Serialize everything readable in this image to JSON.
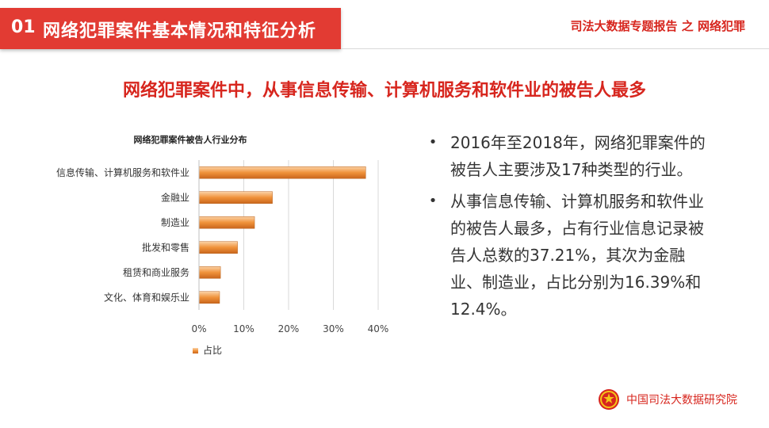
{
  "header": {
    "number": "01",
    "title": "网络犯罪案件基本情况和特征分析"
  },
  "top_right": "司法大数据专题报告 之 网络犯罪",
  "subtitle": "网络犯罪案件中，从事信息传输、计算机服务和软件业的被告人最多",
  "chart_data": {
    "type": "bar",
    "orientation": "horizontal",
    "title": "网络犯罪案件被告人行业分布",
    "categories": [
      "信息传输、计算机服务和软件业",
      "金融业",
      "制造业",
      "批发和零售",
      "租赁和商业服务",
      "文化、体育和娱乐业"
    ],
    "series": [
      {
        "name": "占比",
        "values": [
          37.21,
          16.39,
          12.4,
          8.6,
          4.8,
          4.6
        ]
      }
    ],
    "xlim": [
      0,
      40
    ],
    "xticks": [
      "0%",
      "10%",
      "20%",
      "30%",
      "40%"
    ],
    "legend": "bottom-left",
    "bar_color": "#f0923a"
  },
  "bullets": [
    "2016年至2018年，网络犯罪案件的被告人主要涉及17种类型的行业。",
    "从事信息传输、计算机服务和软件业的被告人最多，占有行业信息记录被告人总数的37.21%，其次为金融业、制造业，占比分别为16.39%和12.4%。"
  ],
  "bullet_symbol": "•",
  "footer": {
    "text": "中国司法大数据研究院",
    "emblem_icon": "national-emblem-icon"
  },
  "colors": {
    "accent_red": "#e23b33",
    "bar": "#f0923a"
  }
}
